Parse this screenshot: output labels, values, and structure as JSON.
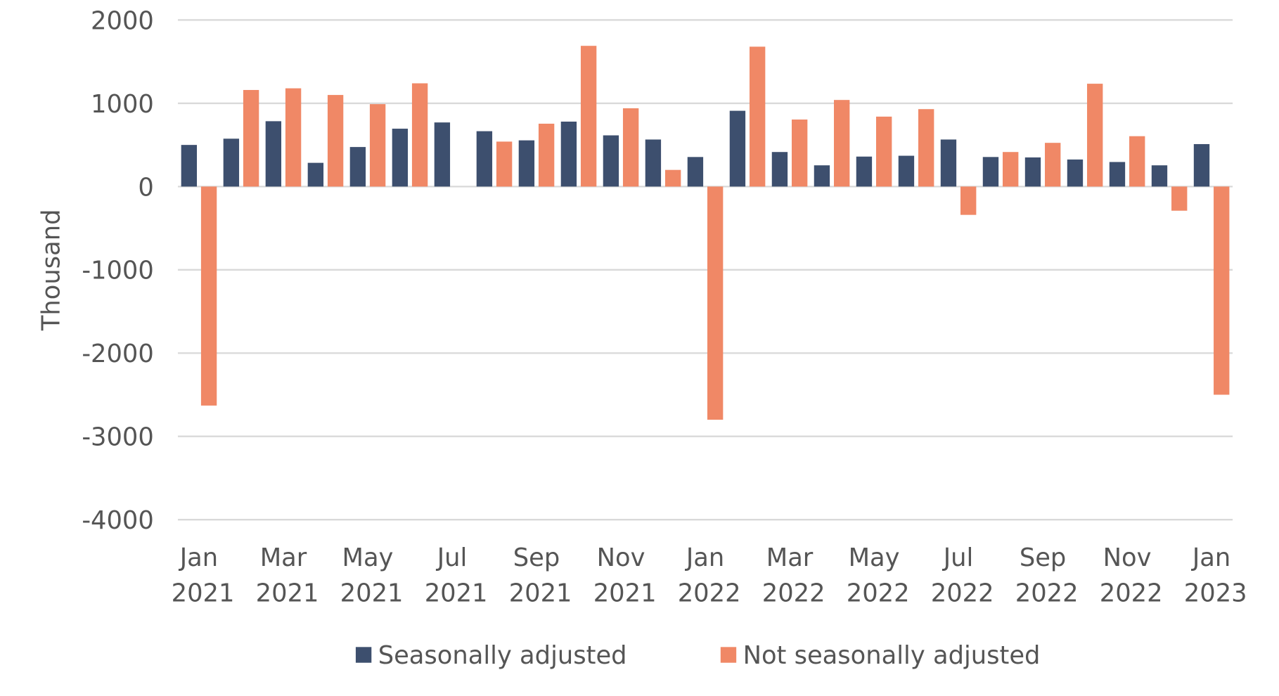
{
  "chart_data": {
    "type": "bar",
    "y_label": "Thousand",
    "categories": [
      "Jan 2021",
      null,
      "Mar 2021",
      null,
      "May 2021",
      null,
      "Jul 2021",
      null,
      "Sep 2021",
      null,
      "Nov 2021",
      null,
      "Jan 2022",
      null,
      "Mar 2022",
      null,
      "May 2022",
      null,
      "Jul 2022",
      null,
      "Sep 2022",
      null,
      "Nov 2022",
      null,
      "Jan 2023"
    ],
    "series": [
      {
        "name": "Seasonally adjusted",
        "color": "#3d4f6e",
        "values": [
          500,
          575,
          785,
          285,
          475,
          695,
          770,
          665,
          555,
          780,
          615,
          565,
          355,
          910,
          415,
          255,
          360,
          370,
          565,
          355,
          350,
          325,
          295,
          255,
          510
        ]
      },
      {
        "name": "Not seasonally adjusted",
        "color": "#f08866",
        "values": [
          -2630,
          1160,
          1180,
          1100,
          990,
          1240,
          null,
          540,
          755,
          1690,
          940,
          200,
          -2800,
          1680,
          805,
          1040,
          840,
          930,
          -340,
          415,
          525,
          1235,
          605,
          -290,
          -2500
        ]
      }
    ],
    "ylim": [
      -4000,
      2000
    ],
    "yticks": [
      -4000,
      -3000,
      -2000,
      -1000,
      0,
      1000,
      2000
    ],
    "grid": true
  }
}
